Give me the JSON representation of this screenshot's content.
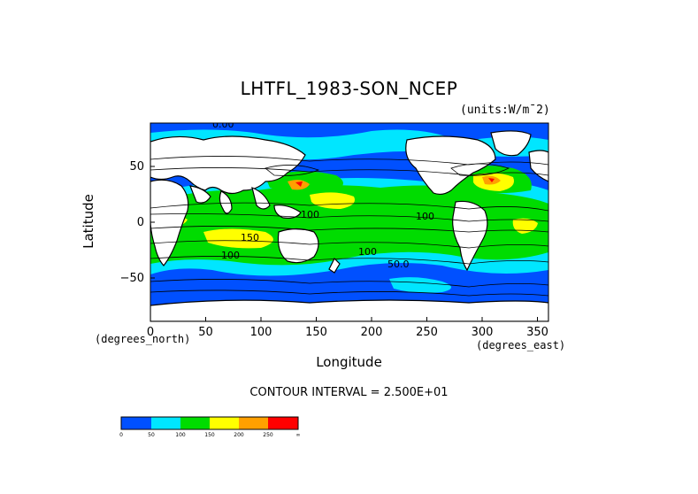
{
  "title": "LHTFL_1983-SON_NCEP",
  "units": "(units:W/m¯2)",
  "axes": {
    "xlabel": "Longitude",
    "ylabel": "Latitude",
    "x_unit_left": "(degrees_north)",
    "x_unit_right": "(degrees_east)",
    "x_ticks": [
      "0",
      "50",
      "100",
      "150",
      "200",
      "250",
      "300",
      "350"
    ],
    "y_ticks": [
      "50",
      "0",
      "−50"
    ]
  },
  "contour_interval": "CONTOUR INTERVAL = 2.500E+01",
  "contour_labels": [
    "100",
    "150",
    "100",
    "50.0",
    "100",
    "100",
    "0.00"
  ],
  "colorbar": {
    "colors": [
      "#0050ff",
      "#00e6ff",
      "#00dc00",
      "#ffff00",
      "#ffa000",
      "#ff0000"
    ],
    "labels": [
      "0",
      "50",
      "100",
      "150",
      "200",
      "250",
      "∞"
    ]
  },
  "colors": {
    "land": "#ffffff",
    "ocean_low": "#0050ff",
    "ocean_mid": "#00e6ff",
    "ocean_high": "#00dc00",
    "ocean_peak": "#ffff00",
    "contour": "#000000"
  },
  "map_data": {
    "lon_range": [
      0,
      360
    ],
    "lat_range": [
      -90,
      90
    ]
  }
}
